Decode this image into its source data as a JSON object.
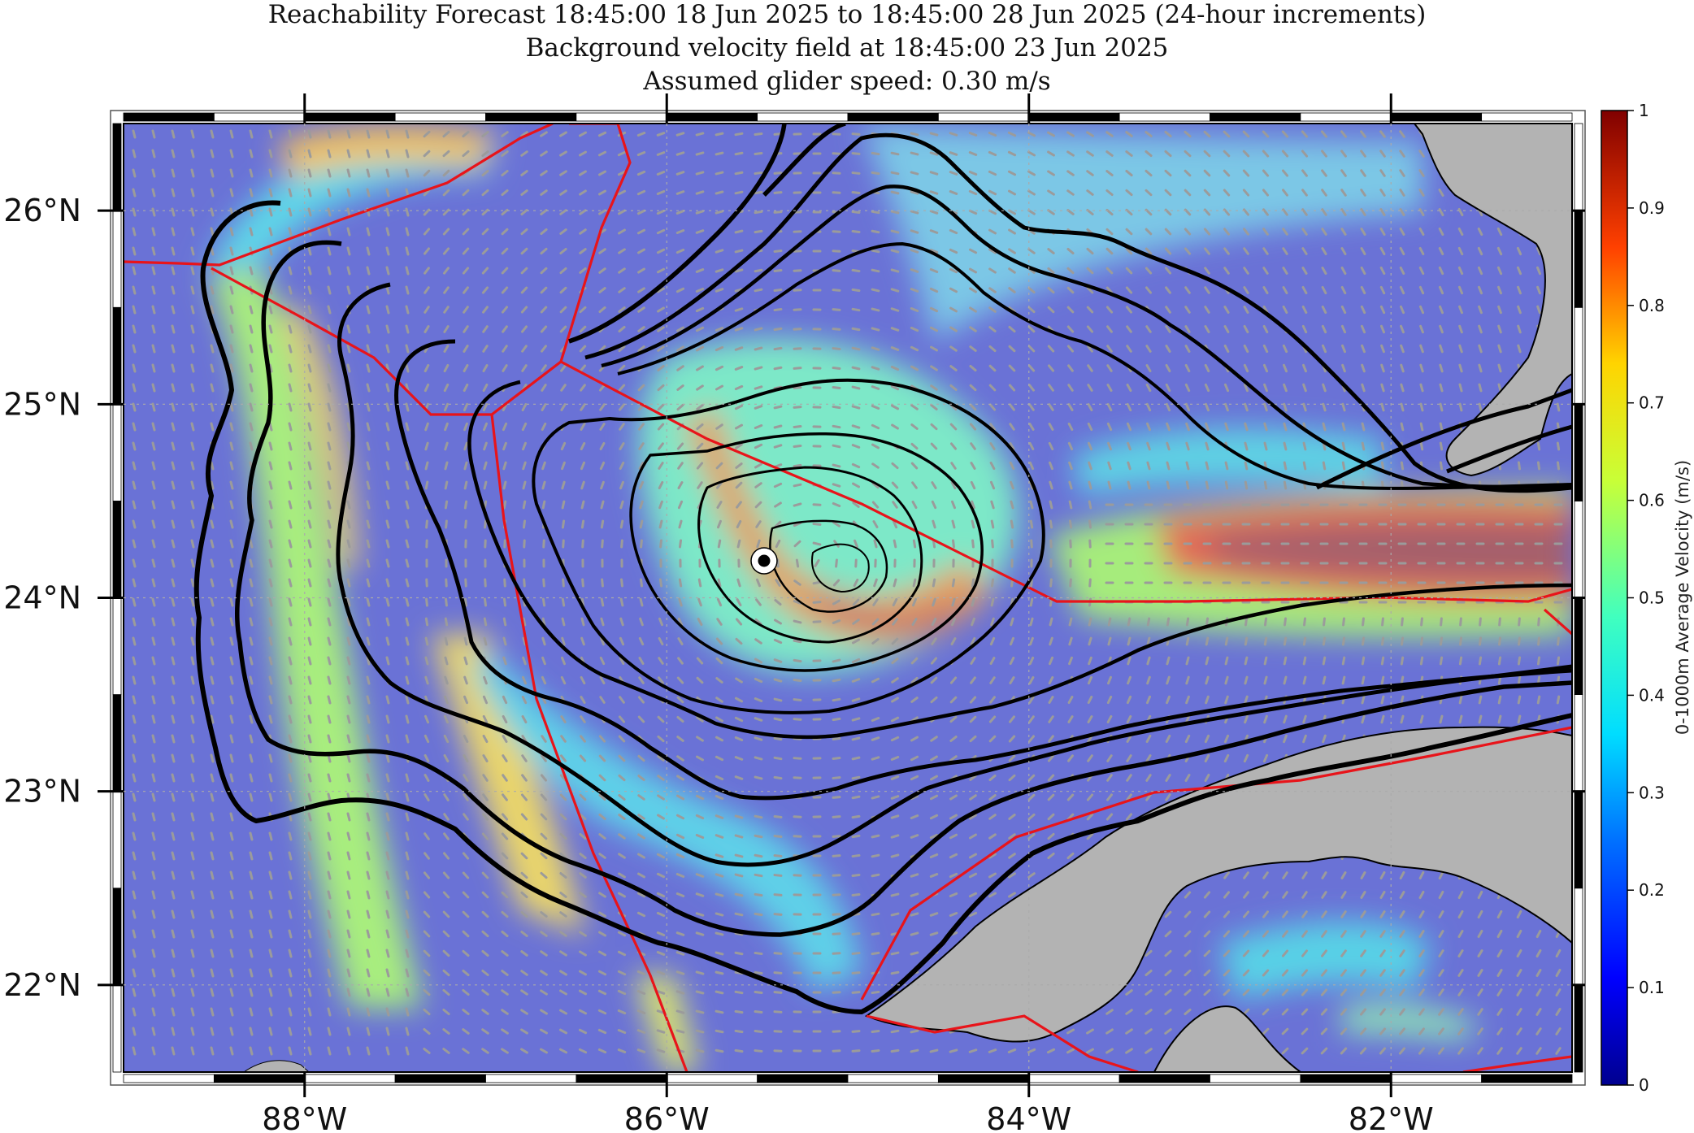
{
  "title": {
    "line1": "Reachability Forecast 18:45:00 18 Jun 2025 to 18:45:00 28 Jun 2025 (24-hour increments)",
    "line2": "Background velocity field at 18:45:00 23 Jun 2025",
    "line3": "Assumed glider speed: 0.30 m/s"
  },
  "map": {
    "lon_range": [
      -89.0,
      -81.0
    ],
    "lat_range": [
      21.55,
      26.45
    ],
    "lat_ticks": [
      "26°N",
      "25°N",
      "24°N",
      "23°N",
      "22°N"
    ],
    "lat_tick_values": [
      26,
      25,
      24,
      23,
      22
    ],
    "lon_ticks": [
      "88°W",
      "86°W",
      "84°W",
      "82°W"
    ],
    "lon_tick_values": [
      -88,
      -86,
      -84,
      -82
    ],
    "grid": true,
    "start_point": {
      "lon": -85.45,
      "lat": 24.2
    },
    "reachability_contours": 10,
    "colors": {
      "land": "#b3b3b3",
      "contours": "#000000",
      "eez_lines": "#e8141a",
      "arrows": "#9b9b9b"
    }
  },
  "colorbar": {
    "label": "0-1000m Average Velocity (m/s)",
    "range": [
      0,
      1
    ],
    "ticks": [
      "0",
      "0.1",
      "0.2",
      "0.3",
      "0.4",
      "0.5",
      "0.6",
      "0.7",
      "0.8",
      "0.9",
      "1"
    ],
    "colormap": "jet"
  }
}
